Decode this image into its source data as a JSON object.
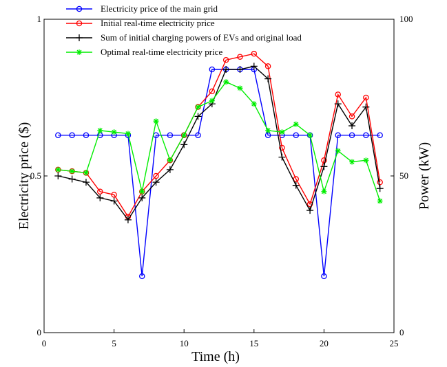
{
  "chart_data": {
    "type": "line",
    "xlabel": "Time (h)",
    "ylabel_left": "Electricity price ($)",
    "ylabel_right": "Power (kW)",
    "xlim": [
      0,
      25
    ],
    "ylim_left": [
      0,
      1
    ],
    "ylim_right": [
      0,
      100
    ],
    "x_ticks": [
      "0",
      "5",
      "10",
      "15",
      "20",
      "25"
    ],
    "y_left_ticks": [
      "0",
      "0.5",
      "1"
    ],
    "y_right_ticks": [
      "0",
      "50",
      "100"
    ],
    "legend_position": "top-left",
    "grid": false,
    "x": [
      1,
      2,
      3,
      4,
      5,
      6,
      7,
      8,
      9,
      10,
      11,
      12,
      13,
      14,
      15,
      16,
      17,
      18,
      19,
      20,
      21,
      22,
      23,
      24
    ],
    "series": [
      {
        "name": "Electricity price of the main grid",
        "axis": "left",
        "color": "#0000ff",
        "marker": "circle",
        "values": [
          0.63,
          0.63,
          0.63,
          0.63,
          0.63,
          0.63,
          0.18,
          0.63,
          0.63,
          0.63,
          0.63,
          0.84,
          0.84,
          0.84,
          0.84,
          0.63,
          0.63,
          0.63,
          0.63,
          0.18,
          0.63,
          0.63,
          0.63,
          0.63
        ]
      },
      {
        "name": "Initial real-time electricity price",
        "axis": "left",
        "color": "#ff0000",
        "marker": "circle",
        "values": [
          0.52,
          0.515,
          0.51,
          0.45,
          0.44,
          0.37,
          0.45,
          0.5,
          0.55,
          0.63,
          0.72,
          0.77,
          0.87,
          0.88,
          0.89,
          0.85,
          0.59,
          0.49,
          0.41,
          0.55,
          0.76,
          0.69,
          0.75,
          0.48
        ]
      },
      {
        "name": "Sum of initial charging powers of EVs and original load",
        "axis": "right",
        "color": "#000000",
        "marker": "plus",
        "values": [
          50,
          49,
          48,
          43,
          42,
          36,
          43,
          48,
          52,
          60,
          69,
          73,
          84,
          84,
          85,
          81,
          56,
          47,
          39,
          53,
          73,
          66,
          72,
          46
        ]
      },
      {
        "name": "Optimal real-time electricity price",
        "axis": "left",
        "color": "#00ee00",
        "marker": "asterisk",
        "values": [
          0.52,
          0.515,
          0.51,
          0.645,
          0.64,
          0.635,
          0.45,
          0.675,
          0.55,
          0.63,
          0.72,
          0.74,
          0.8,
          0.78,
          0.73,
          0.645,
          0.64,
          0.665,
          0.63,
          0.45,
          0.58,
          0.545,
          0.55,
          0.42
        ]
      }
    ]
  }
}
